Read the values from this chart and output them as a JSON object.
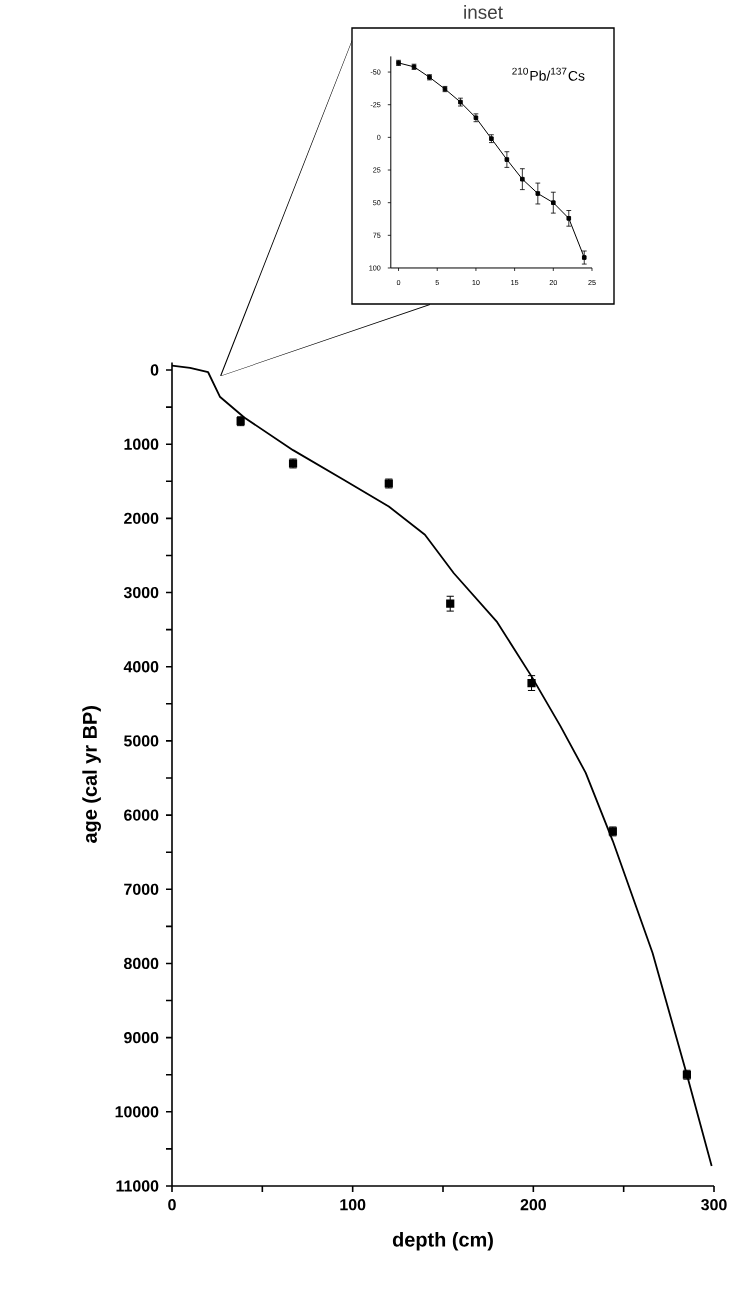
{
  "chart_data": [
    {
      "type": "scatter",
      "xlabel": "depth (cm)",
      "ylabel": "age (cal yr BP)",
      "xlim": [
        0,
        300
      ],
      "ylim": [
        11000,
        -100
      ],
      "xticks": [
        0,
        {
          "value": 50,
          "label": null
        },
        100,
        {
          "value": 150,
          "label": null
        },
        200,
        {
          "value": 250,
          "label": null
        },
        300
      ],
      "yticks": [
        0,
        {
          "value": 500,
          "label": null
        },
        1000,
        {
          "value": 1500,
          "label": null
        },
        2000,
        {
          "value": 2500,
          "label": null
        },
        3000,
        {
          "value": 3500,
          "label": null
        },
        4000,
        {
          "value": 4500,
          "label": null
        },
        5000,
        {
          "value": 5500,
          "label": null
        },
        6000,
        {
          "value": 6500,
          "label": null
        },
        7000,
        {
          "value": 7500,
          "label": null
        },
        8000,
        {
          "value": 8500,
          "label": null
        },
        9000,
        {
          "value": 9500,
          "label": null
        },
        10000,
        {
          "value": 10500,
          "label": null
        },
        11000
      ],
      "series": [
        {
          "type": "line",
          "color": "#000000",
          "marker": "none",
          "x": [
            0,
            10,
            20,
            26.5,
            40,
            67,
            95,
            120,
            140,
            156,
            180,
            199,
            215,
            229,
            244,
            266,
            285,
            298.7
          ],
          "values": [
            -60,
            -30,
            30,
            360,
            640,
            1080,
            1480,
            1840,
            2220,
            2740,
            3400,
            4130,
            4800,
            5430,
            6350,
            7860,
            9500,
            10730
          ]
        },
        {
          "color": "#000000",
          "marker": "square",
          "x": [
            38,
            67,
            120,
            154,
            199,
            244,
            285
          ],
          "values": [
            690,
            1260,
            1530,
            3150,
            4220,
            6220,
            9500
          ],
          "errors": [
            60,
            60,
            60,
            100,
            100,
            60,
            60
          ]
        }
      ]
    },
    {
      "type": "line",
      "title": "inset",
      "annotations": [
        "$^{210}$Pb/$^{137}$Cs"
      ],
      "xlim": [
        -1,
        25
      ],
      "ylim": [
        100,
        -62
      ],
      "xticks": [
        0,
        5,
        10,
        15,
        20,
        25
      ],
      "yticks": [
        -50,
        -25,
        0,
        25,
        50,
        75,
        100
      ],
      "series": [
        {
          "color": "#000000",
          "marker": "square",
          "x": [
            0,
            2,
            4,
            6,
            8,
            10,
            12,
            14,
            16,
            18,
            20,
            22,
            24
          ],
          "values": [
            -57,
            -54,
            -46,
            -37,
            -27,
            -15,
            1,
            17,
            32,
            43,
            50,
            62,
            92
          ],
          "errors": [
            2,
            2,
            2,
            2,
            3,
            3,
            3,
            6,
            8,
            8,
            8,
            6,
            5
          ]
        }
      ]
    }
  ]
}
